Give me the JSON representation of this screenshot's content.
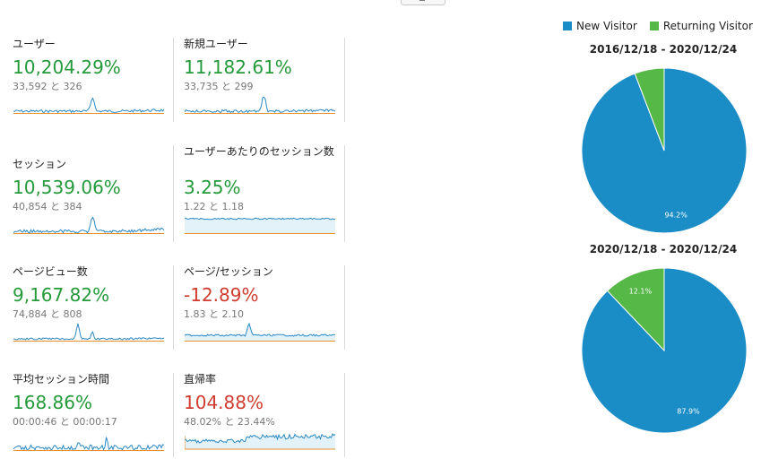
{
  "colors": {
    "new_visitor": "#1a8cc6",
    "returning_visitor": "#56b846",
    "positive": "#249a3a",
    "negative": "#cf3b2f",
    "spark_current": "#2a89c4",
    "spark_previous": "#e8912c"
  },
  "metrics": [
    {
      "label": "ユーザー",
      "change": "10,204.29%",
      "trend": "up",
      "comparison": "33,592 と 326"
    },
    {
      "label": "新規ユーザー",
      "change": "11,182.61%",
      "trend": "up",
      "comparison": "33,735 と 299"
    },
    {
      "label": "セッション",
      "change": "10,539.06%",
      "trend": "up",
      "comparison": "40,854 と 384"
    },
    {
      "label": "ユーザーあたりのセッション数",
      "change": "3.25%",
      "trend": "up",
      "comparison": "1.22 と 1.18"
    },
    {
      "label": "ページビュー数",
      "change": "9,167.82%",
      "trend": "up",
      "comparison": "74,884 と 808"
    },
    {
      "label": "ページ/セッション",
      "change": "-12.89%",
      "trend": "down",
      "comparison": "1.83 と 2.10"
    },
    {
      "label": "平均セッション時間",
      "change": "168.86%",
      "trend": "up",
      "comparison": "00:00:46 と 00:00:17"
    },
    {
      "label": "直帰率",
      "change": "104.88%",
      "trend": "down",
      "comparison": "48.02% と 23.44%"
    }
  ],
  "legend": {
    "new_visitor": "New Visitor",
    "returning_visitor": "Returning Visitor"
  },
  "chart_data": [
    {
      "type": "pie",
      "title": "2016/12/18 - 2020/12/24",
      "labels": [
        "New Visitor",
        "Returning Visitor"
      ],
      "values": [
        94.2,
        5.8
      ],
      "data_labels": [
        "94.2%",
        ""
      ]
    },
    {
      "type": "pie",
      "title": "2020/12/18 - 2020/12/24",
      "labels": [
        "New Visitor",
        "Returning Visitor"
      ],
      "values": [
        87.9,
        12.1
      ],
      "data_labels": [
        "87.9%",
        "12.1%"
      ]
    }
  ]
}
